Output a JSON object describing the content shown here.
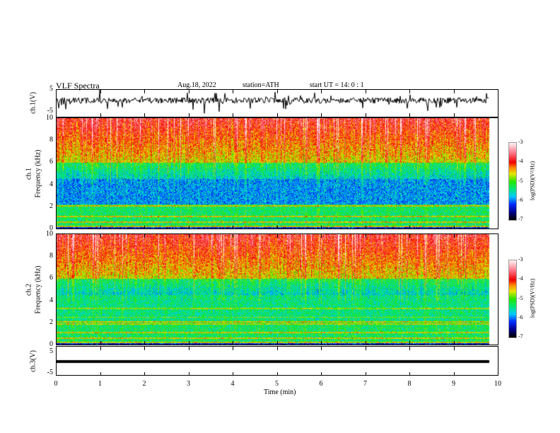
{
  "header": {
    "title": "VLF  Spectra",
    "date": "Aug.18, 2022",
    "station": "station=ATH",
    "start": "start  UT  =   14: 0  : 1"
  },
  "chart_data": {
    "type": "heatmap",
    "title": "VLF Spectra",
    "xlabel": "Time  (min)",
    "xlim": [
      0,
      10
    ],
    "data_end_min": 9.8,
    "xticks": [
      "0",
      "1",
      "2",
      "3",
      "4",
      "5",
      "6",
      "7",
      "8",
      "9",
      "10"
    ],
    "panels": [
      {
        "name": "ch1-waveform",
        "ylabel": "ch.1(V)",
        "ylim": [
          -5,
          5
        ],
        "yticks": [
          "5",
          "-5"
        ]
      },
      {
        "name": "ch1-spectrogram",
        "ylabel1": "ch.1",
        "ylabel2": "Frequency  (kHz)",
        "ylim": [
          0,
          10
        ],
        "yticks": [
          "10",
          "8",
          "6",
          "4",
          "2",
          "0"
        ]
      },
      {
        "name": "ch2-spectrogram",
        "ylabel1": "ch.2",
        "ylabel2": "Frequency  (kHz)",
        "ylim": [
          0,
          10
        ],
        "yticks": [
          "10",
          "8",
          "6",
          "4",
          "2",
          "0"
        ]
      },
      {
        "name": "ch3-waveform",
        "ylabel": "ch.3(V)",
        "ylim": [
          -5,
          5
        ],
        "yticks": [
          "5",
          "-5"
        ]
      }
    ],
    "colorbar": {
      "label": "log(PSD)(V²/Hz)",
      "range": [
        -7,
        -3
      ],
      "ticks": [
        "-3",
        "-4",
        "-5",
        "-6",
        "-7"
      ]
    }
  }
}
